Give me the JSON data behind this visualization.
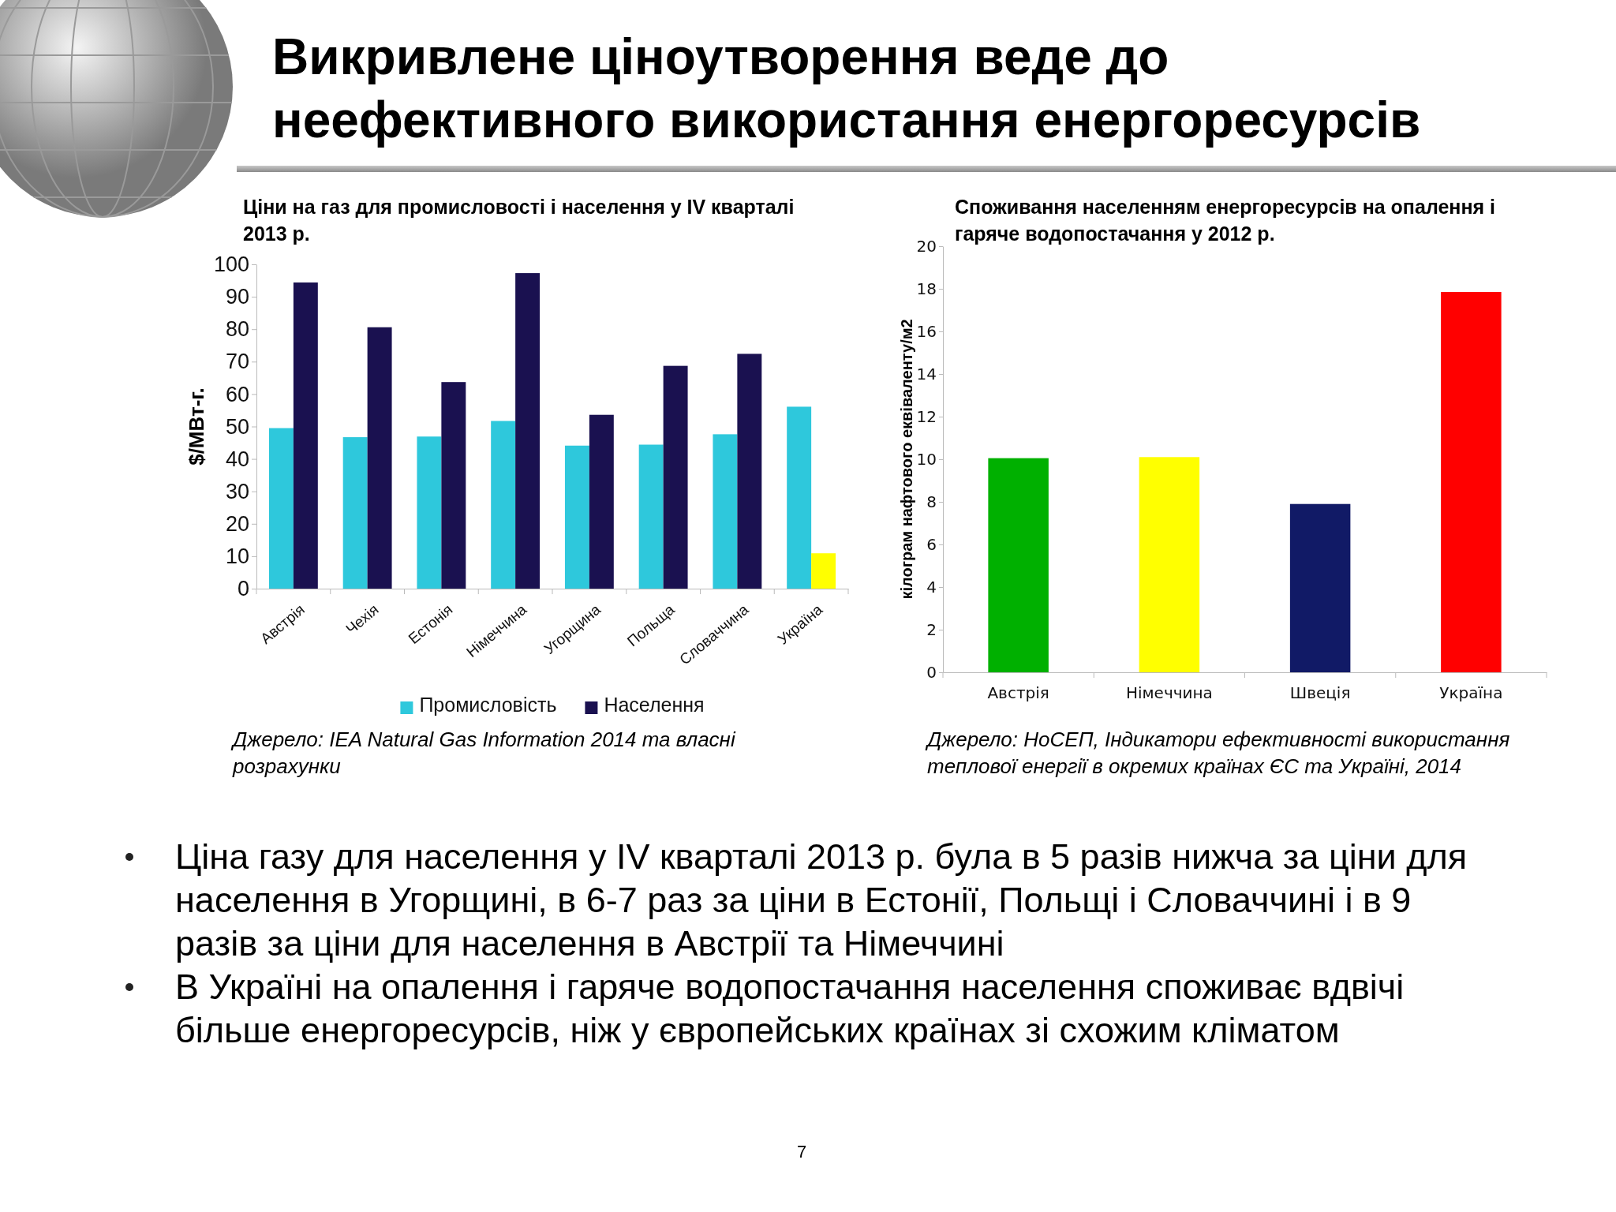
{
  "chart_data": [
    {
      "type": "other",
      "title": "Викривлене ціноутворення веде до неефективного використання енергоресурсів",
      "annotations": [
        "Ціна газу для населення у IV кварталі 2013 р. була в 5 разів нижча за ціни для населення в Угорщині, в 6-7 раз за ціни в Естонії, Польщі і Словаччині і в 9 разів за ціни для населення в Австрії та Німеччині",
        "В Україні на опалення і гаряче водопостачання населення споживає вдвічі більше енергоресурсів, ніж у європейських країнах зі схожим кліматом",
        "7"
      ]
    },
    {
      "type": "bar",
      "title": "Ціни на газ для промисловості і населення у IV кварталі 2013 р.",
      "ylabel": "$/МВт-г.",
      "categories": [
        "Австрія",
        "Чехія",
        "Естонія",
        "Німеччина",
        "Угорщина",
        "Польща",
        "Словаччина",
        "Україна"
      ],
      "series": [
        {
          "name": "Промисловість",
          "color": "#2ec8dc",
          "values": [
            49.5,
            46.7,
            46.9,
            51.7,
            44.1,
            44.4,
            47.6,
            56.1
          ]
        },
        {
          "name": "Населення",
          "color": "#1a1150",
          "colors": [
            "#1a1150",
            "#1a1150",
            "#1a1150",
            "#1a1150",
            "#1a1150",
            "#1a1150",
            "#1a1150",
            "#ffff00"
          ],
          "values": [
            94.4,
            80.6,
            63.7,
            97.3,
            53.6,
            68.7,
            72.4,
            10.9
          ]
        }
      ],
      "ylim": [
        0,
        100
      ],
      "yticks": [
        0,
        10,
        20,
        30,
        40,
        50,
        60,
        70,
        80,
        90,
        100
      ],
      "grid": false,
      "legend": "bottom",
      "annotations": [
        "Джерело: IEA Natural Gas Information 2014 та власні розрахунки"
      ]
    },
    {
      "type": "bar",
      "title": "Споживання населенням енергоресурсів на опалення і гаряче водопостачання у 2012 р.",
      "ylabel": "кілограм нафтового еквіваленту/м2",
      "categories": [
        "Австрія",
        "Німеччина",
        "Швеція",
        "Україна"
      ],
      "values": [
        10.05,
        10.1,
        7.9,
        17.85
      ],
      "colors": [
        "#00b000",
        "#ffff00",
        "#111a66",
        "#ff0000"
      ],
      "ylim": [
        0,
        20
      ],
      "yticks": [
        0,
        2,
        4,
        6,
        8,
        10,
        12,
        14,
        16,
        18,
        20
      ],
      "grid": false,
      "legend": false,
      "annotations": [
        "Джерело: НоСЕП, Індикатори ефективності використання теплової енергії в окремих країнах ЄС та Україні, 2014"
      ]
    }
  ]
}
